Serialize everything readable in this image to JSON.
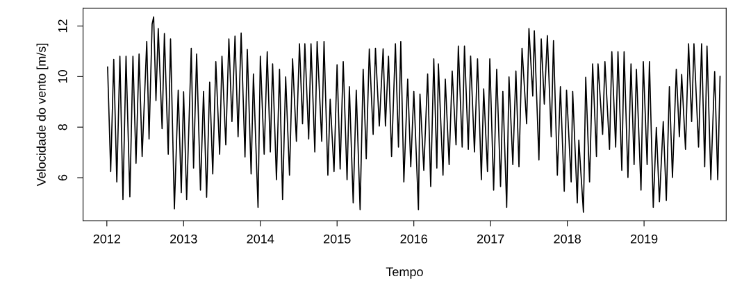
{
  "chart_data": {
    "type": "line",
    "xlabel": "Tempo",
    "ylabel": "Velocidade do vento [m/s]",
    "xlim": [
      2011.69,
      2020.07
    ],
    "ylim": [
      4.3,
      12.7
    ],
    "xticks": [
      2012,
      2013,
      2014,
      2015,
      2016,
      2017,
      2018,
      2019
    ],
    "yticks": [
      6,
      8,
      10,
      12
    ],
    "grid": false,
    "marker": "none",
    "line_style": "solid",
    "series": [
      {
        "color": "#000000",
        "x": [
          2012.01,
          2012.05,
          2012.09,
          2012.13,
          2012.17,
          2012.21,
          2012.25,
          2012.3,
          2012.34,
          2012.38,
          2012.42,
          2012.46,
          2012.52,
          2012.55,
          2012.59,
          2012.61,
          2012.64,
          2012.67,
          2012.72,
          2012.75,
          2012.8,
          2012.83,
          2012.88,
          2012.93,
          2012.97,
          2013.0,
          2013.04,
          2013.1,
          2013.13,
          2013.17,
          2013.22,
          2013.26,
          2013.3,
          2013.34,
          2013.38,
          2013.42,
          2013.47,
          2013.5,
          2013.55,
          2013.59,
          2013.63,
          2013.67,
          2013.71,
          2013.75,
          2013.8,
          2013.83,
          2013.88,
          2013.91,
          2013.97,
          2014.0,
          2014.05,
          2014.09,
          2014.13,
          2014.16,
          2014.21,
          2014.25,
          2014.29,
          2014.33,
          2014.38,
          2014.42,
          2014.47,
          2014.51,
          2014.55,
          2014.58,
          2014.63,
          2014.66,
          2014.71,
          2014.74,
          2014.8,
          2014.83,
          2014.88,
          2014.91,
          2014.96,
          2015.0,
          2015.04,
          2015.08,
          2015.13,
          2015.16,
          2015.21,
          2015.25,
          2015.3,
          2015.34,
          2015.38,
          2015.42,
          2015.47,
          2015.5,
          2015.55,
          2015.6,
          2015.63,
          2015.67,
          2015.71,
          2015.76,
          2015.8,
          2015.83,
          2015.87,
          2015.92,
          2015.96,
          2016.0,
          2016.06,
          2016.08,
          2016.13,
          2016.18,
          2016.22,
          2016.26,
          2016.3,
          2016.32,
          2016.38,
          2016.41,
          2016.46,
          2016.5,
          2016.55,
          2016.58,
          2016.63,
          2016.66,
          2016.71,
          2016.74,
          2016.79,
          2016.83,
          2016.88,
          2016.91,
          2016.96,
          2016.99,
          2017.04,
          2017.08,
          2017.13,
          2017.16,
          2017.21,
          2017.24,
          2017.29,
          2017.33,
          2017.37,
          2017.41,
          2017.47,
          2017.5,
          2017.55,
          2017.57,
          2017.63,
          2017.66,
          2017.7,
          2017.74,
          2017.79,
          2017.82,
          2017.87,
          2017.91,
          2017.96,
          2017.99,
          2018.05,
          2018.07,
          2018.13,
          2018.15,
          2018.21,
          2018.24,
          2018.29,
          2018.33,
          2018.38,
          2018.4,
          2018.46,
          2018.49,
          2018.55,
          2018.58,
          2018.63,
          2018.66,
          2018.71,
          2018.74,
          2018.79,
          2018.83,
          2018.87,
          2018.9,
          2018.96,
          2018.99,
          2019.04,
          2019.07,
          2019.12,
          2019.16,
          2019.2,
          2019.25,
          2019.29,
          2019.33,
          2019.37,
          2019.42,
          2019.46,
          2019.49,
          2019.54,
          2019.58,
          2019.62,
          2019.65,
          2019.71,
          2019.75,
          2019.79,
          2019.82,
          2019.87,
          2019.92,
          2019.96,
          2019.99
        ],
        "values": [
          10.38,
          6.24,
          10.68,
          5.83,
          10.8,
          5.14,
          10.8,
          5.24,
          10.8,
          6.57,
          10.89,
          6.84,
          11.39,
          7.53,
          12.08,
          12.36,
          9.05,
          11.9,
          7.94,
          11.7,
          6.93,
          11.49,
          4.77,
          9.46,
          5.41,
          9.4,
          5.14,
          11.12,
          6.38,
          10.89,
          5.51,
          9.42,
          5.23,
          9.78,
          6.15,
          10.59,
          6.93,
          10.8,
          7.3,
          11.49,
          8.22,
          11.6,
          7.62,
          11.72,
          6.82,
          11.07,
          6.15,
          10.1,
          4.82,
          10.8,
          6.93,
          10.98,
          7.02,
          10.5,
          5.92,
          10.29,
          5.14,
          9.99,
          6.1,
          10.7,
          7.44,
          11.3,
          8.13,
          11.3,
          7.53,
          11.3,
          7.02,
          11.39,
          7.44,
          11.39,
          6.1,
          9.1,
          6.24,
          10.47,
          6.34,
          10.59,
          5.92,
          9.6,
          5.0,
          9.46,
          4.73,
          10.29,
          6.75,
          11.09,
          7.71,
          11.12,
          8.04,
          11.1,
          8.04,
          10.8,
          6.84,
          11.3,
          7.21,
          11.39,
          5.83,
          9.9,
          6.43,
          9.42,
          4.73,
          9.31,
          6.29,
          10.1,
          5.65,
          10.7,
          6.38,
          10.5,
          6.1,
          9.9,
          6.52,
          10.22,
          7.3,
          11.21,
          7.21,
          11.21,
          7.12,
          10.81,
          7.02,
          10.7,
          5.92,
          9.51,
          6.24,
          10.7,
          5.51,
          10.29,
          5.65,
          9.42,
          4.82,
          9.99,
          6.52,
          10.22,
          6.43,
          11.12,
          8.13,
          11.9,
          9.23,
          11.81,
          6.7,
          11.49,
          8.91,
          11.62,
          7.62,
          11.42,
          6.1,
          9.6,
          5.46,
          9.46,
          5.83,
          9.42,
          5.0,
          7.48,
          4.63,
          9.97,
          5.83,
          10.5,
          6.84,
          10.5,
          7.71,
          10.59,
          7.12,
          10.98,
          7.21,
          10.98,
          6.29,
          10.98,
          6.01,
          10.5,
          6.52,
          10.29,
          5.51,
          10.59,
          6.52,
          10.59,
          4.82,
          7.99,
          5.05,
          8.22,
          5.1,
          9.6,
          6.01,
          10.29,
          7.62,
          10.08,
          7.12,
          11.3,
          8.22,
          11.3,
          7.21,
          11.3,
          6.43,
          11.21,
          5.92,
          10.2,
          5.92,
          10.01
        ]
      }
    ]
  }
}
